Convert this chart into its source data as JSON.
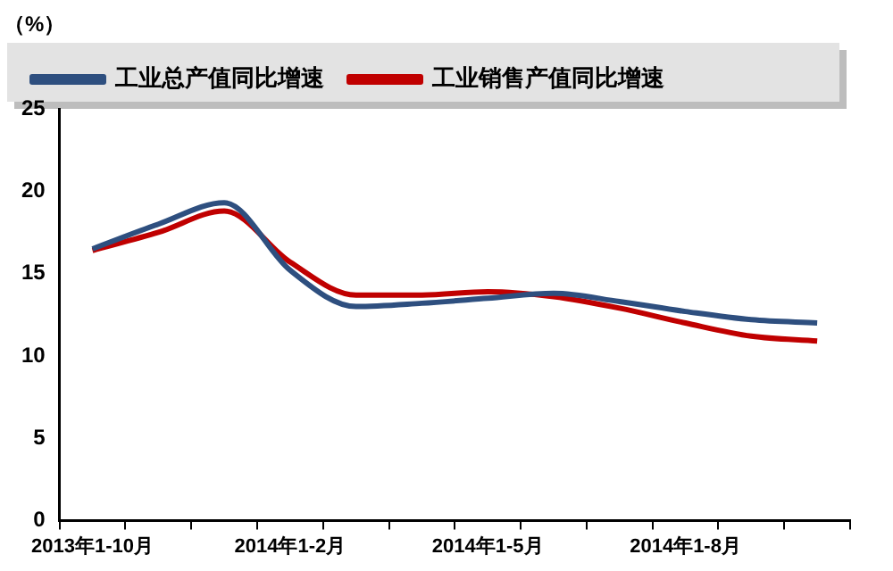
{
  "chart_data": {
    "type": "line",
    "ylabel": "（%）",
    "categories": [
      "2013年1-10月",
      null,
      null,
      "2014年1-2月",
      null,
      null,
      "2014年1-5月",
      null,
      null,
      "2014年1-8月",
      null,
      null
    ],
    "series": [
      {
        "name": "工业总产值同比增速",
        "color": "#2e4f7f",
        "values": [
          16.5,
          18.0,
          19.3,
          15.2,
          13.0,
          13.2,
          13.5,
          13.8,
          13.3,
          12.7,
          12.2,
          12.0
        ]
      },
      {
        "name": "工业销售产值同比增速",
        "color": "#c00000",
        "values": [
          16.4,
          17.5,
          18.8,
          15.7,
          13.7,
          13.7,
          13.9,
          13.6,
          12.9,
          12.0,
          11.2,
          10.9
        ]
      }
    ],
    "ylim": [
      0,
      25
    ],
    "yticks": [
      0,
      5,
      10,
      15,
      20,
      25
    ],
    "grid": false,
    "legend": "top left",
    "marker": "none",
    "line_style": "solid"
  }
}
